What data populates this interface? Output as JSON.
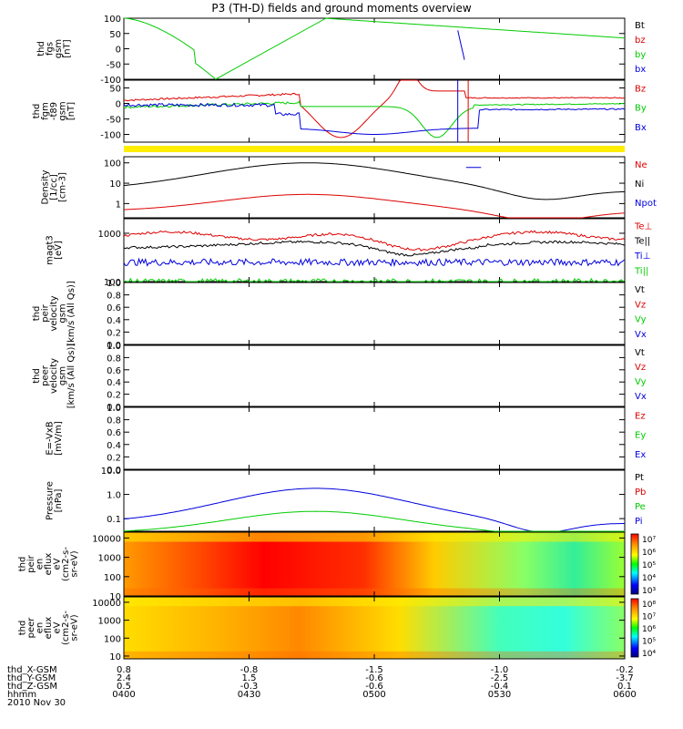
{
  "title": "P3 (TH-D) fields and ground moments overview",
  "colors": {
    "black": "#000000",
    "red": "#dd0000",
    "green": "#00cc00",
    "blue": "#0000dd",
    "yellow": "#ffee00"
  },
  "chart_data": [
    {
      "type": "line",
      "id": "p1",
      "ylabel": [
        "thd",
        "fgs",
        "gsm",
        "[nT]"
      ],
      "ylim": [
        -100,
        100
      ],
      "ticks": [
        "100",
        "50",
        "0",
        "-50",
        "-100"
      ],
      "legend": [
        {
          "name": "Bt",
          "color": "black"
        },
        {
          "name": "bz",
          "color": "red"
        },
        {
          "name": "by",
          "color": "green"
        },
        {
          "name": "bx",
          "color": "blue"
        }
      ]
    },
    {
      "type": "line",
      "id": "p2",
      "ylabel": [
        "thd",
        "fgm",
        "-t89",
        "gsm",
        "[nT]"
      ],
      "ylim": [
        -125,
        75
      ],
      "ticks": [
        "50",
        "0",
        "-50",
        "-100"
      ],
      "legend": [
        {
          "name": "Bz",
          "color": "red"
        },
        {
          "name": "By",
          "color": "green"
        },
        {
          "name": "Bx",
          "color": "blue"
        }
      ]
    },
    {
      "type": "line",
      "id": "p3",
      "ylabel": [
        "Density",
        "[1/cc]",
        "[cm-3]"
      ],
      "ylim": [
        0.2,
        200
      ],
      "log": true,
      "ticks": [
        "100",
        "10",
        "1"
      ],
      "legend": [
        {
          "name": "Ne",
          "color": "red"
        },
        {
          "name": "Ni",
          "color": "black"
        },
        {
          "name": "Npot",
          "color": "blue"
        }
      ]
    },
    {
      "type": "line",
      "id": "p4",
      "ylabel": [
        "magt3",
        "[eV]"
      ],
      "ylim": [
        100,
        2000
      ],
      "log": true,
      "ticks": [
        "1000",
        "100"
      ],
      "legend": [
        {
          "name": "Te⊥",
          "color": "red"
        },
        {
          "name": "Te||",
          "color": "black"
        },
        {
          "name": "Ti⊥",
          "color": "blue"
        },
        {
          "name": "Ti||",
          "color": "green"
        }
      ]
    },
    {
      "type": "line",
      "id": "p5",
      "ylabel": [
        "thd",
        "peir",
        "velocity",
        "gsm",
        "[km/s (All Qs)]"
      ],
      "ylim": [
        0,
        1
      ],
      "ticks": [
        "1.0",
        "0.8",
        "0.6",
        "0.4",
        "0.2",
        "0.0"
      ],
      "legend": [
        {
          "name": "Vt",
          "color": "black"
        },
        {
          "name": "Vz",
          "color": "red"
        },
        {
          "name": "Vy",
          "color": "green"
        },
        {
          "name": "Vx",
          "color": "blue"
        }
      ]
    },
    {
      "type": "line",
      "id": "p6",
      "ylabel": [
        "thd",
        "peer",
        "velocity",
        "gsm",
        "[km/s (All Qs)]"
      ],
      "ylim": [
        0,
        1
      ],
      "ticks": [
        "1.0",
        "0.8",
        "0.6",
        "0.4",
        "0.2",
        "0.0"
      ],
      "legend": [
        {
          "name": "Vt",
          "color": "black"
        },
        {
          "name": "Vz",
          "color": "red"
        },
        {
          "name": "Vy",
          "color": "green"
        },
        {
          "name": "Vx",
          "color": "blue"
        }
      ]
    },
    {
      "type": "line",
      "id": "p7",
      "ylabel": [
        "E=-VxB",
        "[mV/m]"
      ],
      "ylim": [
        0,
        1
      ],
      "ticks": [
        "1.0",
        "0.8",
        "0.6",
        "0.4",
        "0.2",
        "0.0"
      ],
      "legend": [
        {
          "name": "Ez",
          "color": "red"
        },
        {
          "name": "Ey",
          "color": "green"
        },
        {
          "name": "Ex",
          "color": "blue"
        }
      ]
    },
    {
      "type": "line",
      "id": "p8",
      "ylabel": [
        "Pressure",
        "[nPa]"
      ],
      "ylim": [
        0.03,
        10
      ],
      "log": true,
      "ticks": [
        "10.0",
        "1.0",
        "0.1"
      ],
      "legend": [
        {
          "name": "Pt",
          "color": "black"
        },
        {
          "name": "Pb",
          "color": "red"
        },
        {
          "name": "Pe",
          "color": "green"
        },
        {
          "name": "Pi",
          "color": "blue"
        }
      ]
    },
    {
      "type": "heatmap",
      "id": "p9",
      "ylabel": [
        "thd",
        "peir",
        "en",
        "eflux",
        "eV",
        "(cm2-s-",
        "sr-eV)"
      ],
      "ylim": [
        10,
        20000
      ],
      "log": true,
      "ticks": [
        "10000",
        "1000",
        "100",
        "10"
      ],
      "colorbar_ticks": [
        "10⁷",
        "10⁶",
        "10⁵",
        "10⁴",
        "10³"
      ]
    },
    {
      "type": "heatmap",
      "id": "p10",
      "ylabel": [
        "thd",
        "peer",
        "en",
        "eflux",
        "eV",
        "(cm2-s-",
        "sr-eV)"
      ],
      "ylim": [
        7,
        20000
      ],
      "log": true,
      "ticks": [
        "10000",
        "1000",
        "100",
        "10"
      ],
      "colorbar_ticks": [
        "10⁸",
        "10⁷",
        "10⁶",
        "10⁵",
        "10⁴"
      ]
    }
  ],
  "time_axis": {
    "rows": [
      {
        "label": "thd_X-GSM",
        "values": [
          "0.8",
          "-0.8",
          "-1.5",
          "-1.0",
          "-0.2"
        ]
      },
      {
        "label": "thd_Y-GSM",
        "values": [
          "2.4",
          "1.5",
          "-0.6",
          "-2.5",
          "-3.7"
        ]
      },
      {
        "label": "thd_Z-GSM",
        "values": [
          "0.5",
          "-0.3",
          "-0.6",
          "-0.4",
          "0.1"
        ]
      },
      {
        "label": "hhmm",
        "values": [
          "0400",
          "0430",
          "0500",
          "0530",
          "0600"
        ]
      }
    ],
    "date": "2010 Nov 30"
  }
}
